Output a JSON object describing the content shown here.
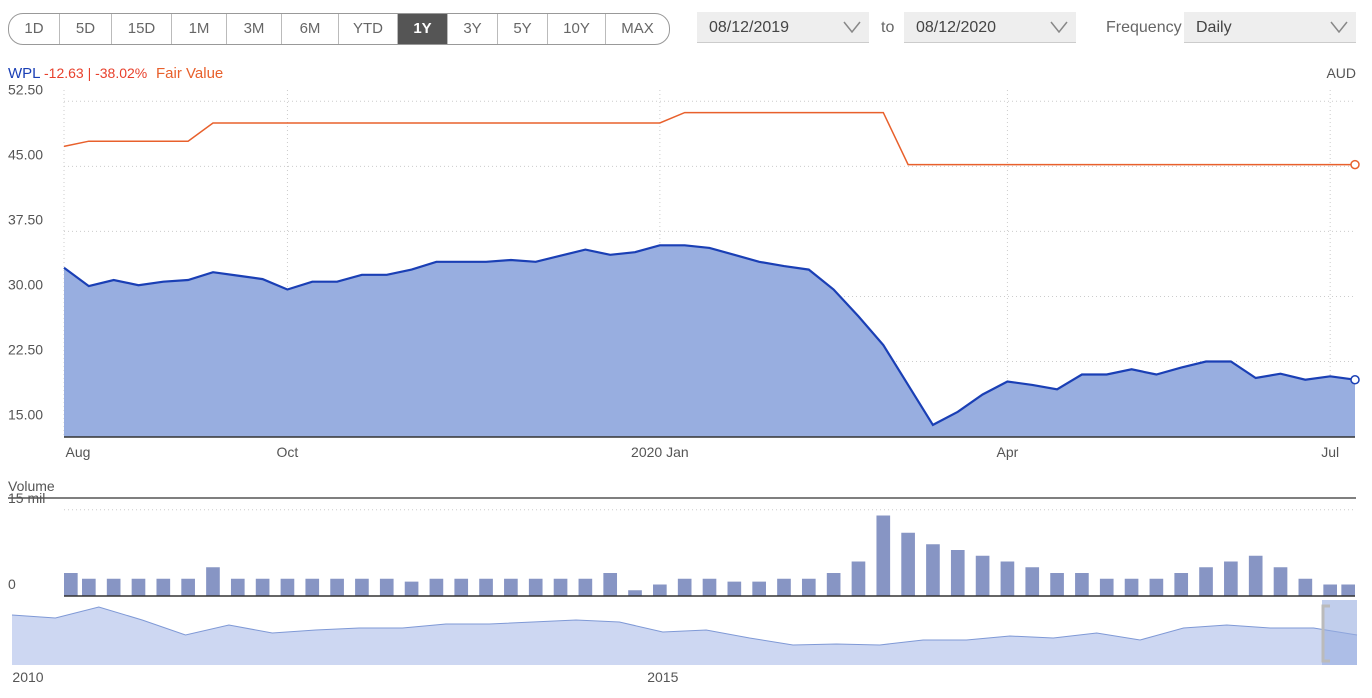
{
  "toolbar": {
    "ranges": [
      "1D",
      "5D",
      "15D",
      "1M",
      "3M",
      "6M",
      "YTD",
      "1Y",
      "3Y",
      "5Y",
      "10Y",
      "MAX"
    ],
    "selected": "1Y",
    "start_date": "08/12/2019",
    "separator": "to",
    "end_date": "08/12/2020",
    "frequency_label": "Frequency",
    "frequency": "Daily"
  },
  "chart_data": [
    {
      "type": "area",
      "quote": "-12.63 | -38.02%",
      "currency": "AUD",
      "categories": [
        "Aug",
        null,
        null,
        null,
        null,
        null,
        null,
        null,
        null,
        "Oct",
        null,
        null,
        null,
        null,
        null,
        null,
        null,
        null,
        null,
        null,
        null,
        null,
        null,
        null,
        "2020 Jan",
        null,
        null,
        null,
        null,
        null,
        null,
        null,
        null,
        null,
        null,
        null,
        null,
        null,
        "Apr",
        null,
        null,
        null,
        null,
        null,
        null,
        null,
        null,
        null,
        null,
        null,
        null,
        "Jul",
        null
      ],
      "series": [
        {
          "name": "WPL",
          "color": "#1a3fb5",
          "fill": "#98aee0",
          "values": [
            33.3,
            31.2,
            31.9,
            31.3,
            31.7,
            31.9,
            32.8,
            32.4,
            32.0,
            30.8,
            31.7,
            31.7,
            32.5,
            32.5,
            33.1,
            34.0,
            34.0,
            34.0,
            34.2,
            34.0,
            34.7,
            35.4,
            34.8,
            35.1,
            35.9,
            35.9,
            35.6,
            34.8,
            34.0,
            33.5,
            33.1,
            30.8,
            27.7,
            24.4,
            19.8,
            15.2,
            16.7,
            18.7,
            20.2,
            19.8,
            19.3,
            21.0,
            21.0,
            21.6,
            21.0,
            21.8,
            22.5,
            22.5,
            20.6,
            21.1,
            20.4,
            20.8,
            20.4
          ]
        },
        {
          "name": "Fair Value",
          "color": "#e8602c",
          "values": [
            47.3,
            47.9,
            47.9,
            47.9,
            47.9,
            47.9,
            50.0,
            50.0,
            50.0,
            50.0,
            50.0,
            50.0,
            50.0,
            50.0,
            50.0,
            50.0,
            50.0,
            50.0,
            50.0,
            50.0,
            50.0,
            50.0,
            50.0,
            50.0,
            50.0,
            51.2,
            51.2,
            51.2,
            51.2,
            51.2,
            51.2,
            51.2,
            51.2,
            51.2,
            45.2,
            45.2,
            45.2,
            45.2,
            45.2,
            45.2,
            45.2,
            45.2,
            45.2,
            45.2,
            45.2,
            45.2,
            45.2,
            45.2,
            45.2,
            45.2,
            45.2,
            45.2,
            45.2
          ]
        }
      ],
      "ylim": [
        13.8,
        53.8
      ],
      "yticks": [
        {
          "value": 15,
          "label": "15.00"
        },
        {
          "value": 22.5,
          "label": "22.50"
        },
        {
          "value": 30,
          "label": "30.00"
        },
        {
          "value": 37.5,
          "label": "37.50"
        },
        {
          "value": 45,
          "label": "45.00"
        },
        {
          "value": 52.5,
          "label": "52.50"
        }
      ],
      "grid": true
    },
    {
      "type": "bar",
      "title": "Volume",
      "categories": [
        null,
        null,
        null,
        null,
        null,
        null,
        null,
        null,
        null,
        null,
        null,
        null,
        null,
        null,
        null,
        null,
        null,
        null,
        null,
        null,
        null,
        null,
        null,
        null,
        null,
        null,
        null,
        null,
        null,
        null,
        null,
        null,
        null,
        null,
        null,
        null,
        null,
        null,
        null,
        null,
        null,
        null,
        null,
        null,
        null,
        null,
        null,
        null,
        null,
        null,
        null,
        null,
        null
      ],
      "values": [
        4,
        3,
        3,
        3,
        3,
        3,
        5,
        3,
        3,
        3,
        3,
        3,
        3,
        3,
        2.5,
        3,
        3,
        3,
        3,
        3,
        3,
        3,
        4,
        1,
        2,
        3,
        3,
        2.5,
        2.5,
        3,
        3,
        4,
        6,
        14,
        11,
        9,
        8,
        7,
        6,
        5,
        4,
        4,
        3,
        3,
        3,
        4,
        5,
        6,
        7,
        5,
        3,
        2,
        2
      ],
      "color": "#8795c4",
      "ylim": [
        0,
        16
      ],
      "yticks": [
        0,
        {
          "value": 15,
          "label": "15 mil"
        }
      ],
      "grid": true
    },
    {
      "type": "area",
      "categories": [
        "2010",
        null,
        null,
        null,
        null,
        null,
        null,
        null,
        null,
        null,
        null,
        null,
        null,
        null,
        null,
        "2015",
        null,
        null,
        null,
        null,
        null,
        null,
        null,
        null,
        null,
        null,
        null,
        null,
        null,
        null,
        null,
        null
      ],
      "series": [
        {
          "color": "#7f99d6",
          "fill": "#cdd7f2",
          "values": [
            46.2,
            43.4,
            53.5,
            41.5,
            27.7,
            36.9,
            29.5,
            32.3,
            34.2,
            34.2,
            37.8,
            37.8,
            39.7,
            41.5,
            39.7,
            30.5,
            32.3,
            24.9,
            18.5,
            19.4,
            18.5,
            23.1,
            23.1,
            26.8,
            24.9,
            29.5,
            23.1,
            34.2,
            36.9,
            34.2,
            34.2,
            27.7
          ]
        }
      ],
      "ylim": [
        0,
        60
      ]
    }
  ]
}
